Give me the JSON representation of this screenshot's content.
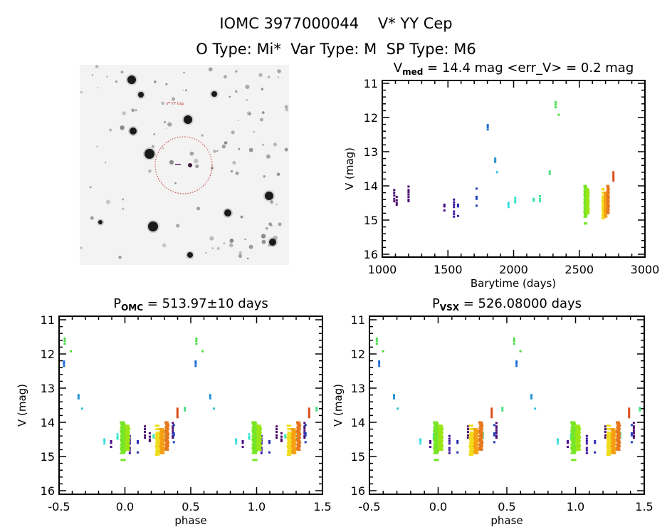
{
  "header": {
    "line1": "IOMC 3977000044    V* YY Cep",
    "line2": "O Type: Mi*  Var Type: M  SP Type: M6"
  },
  "image_panel": {
    "target_label": "V* YY Cep"
  },
  "chart_data": [
    {
      "type": "scatter",
      "id": "lightcurve",
      "title_main": "V",
      "title_sub": "med",
      "title_rest": " = 14.4 mag <err_V> = 0.2 mag",
      "xlabel": "Barytime (days)",
      "ylabel": "V (mag)",
      "xlim": [
        1000,
        3000
      ],
      "ylim": [
        16,
        11
      ],
      "xticks": [
        "1000",
        "1500",
        "2000",
        "2500",
        "3000"
      ],
      "yticks": [
        "11",
        "12",
        "13",
        "14",
        "15",
        "16"
      ],
      "groups": [
        {
          "t": 1091,
          "c": "#4b0a6e",
          "v": [
            14.12,
            14.2,
            14.28,
            14.38,
            14.45
          ]
        },
        {
          "t": 1110,
          "c": "#4b0a6e",
          "v": [
            14.32,
            14.42,
            14.5,
            14.55
          ]
        },
        {
          "t": 1200,
          "c": "#4b0a6e",
          "v": [
            14.02,
            14.12,
            14.18,
            14.25,
            14.32,
            14.4,
            14.45
          ]
        },
        {
          "t": 1473,
          "c": "#4b0a8e",
          "v": [
            14.55,
            14.6,
            14.72
          ]
        },
        {
          "t": 1546,
          "c": "#3c10a0",
          "v": [
            14.4,
            14.48,
            14.55,
            14.62,
            14.75,
            14.82,
            14.9
          ]
        },
        {
          "t": 1577,
          "c": "#2828b4",
          "v": [
            14.55,
            14.6,
            14.88
          ]
        },
        {
          "t": 1718,
          "c": "#2040c0",
          "v": [
            14.08,
            14.32,
            14.38,
            14.58
          ]
        },
        {
          "t": 1803,
          "c": "#1e6ed2",
          "v": [
            12.22,
            12.28,
            12.35
          ]
        },
        {
          "t": 1860,
          "c": "#2896d2",
          "v": [
            13.2,
            13.25,
            13.3
          ]
        },
        {
          "t": 1874,
          "c": "#32bede",
          "v": [
            13.6
          ]
        },
        {
          "t": 1961,
          "c": "#32dcdc",
          "v": [
            14.5,
            14.55,
            14.62
          ]
        },
        {
          "t": 2012,
          "c": "#32e6c8",
          "v": [
            14.35,
            14.42,
            14.48
          ]
        },
        {
          "t": 2153,
          "c": "#32e6b4",
          "v": [
            14.38,
            14.44
          ]
        },
        {
          "t": 2200,
          "c": "#32e696",
          "v": [
            14.3,
            14.38,
            14.45
          ]
        },
        {
          "t": 2275,
          "c": "#3cdc78",
          "v": [
            13.58,
            13.65
          ]
        },
        {
          "t": 2320,
          "c": "#46dc46",
          "v": [
            11.55,
            11.62,
            11.7
          ]
        },
        {
          "t": 2344,
          "c": "#50dc3c",
          "v": [
            11.92
          ]
        },
        {
          "t": 2547,
          "c": "#78e628",
          "spread": 12,
          "v": [
            14.0,
            14.05,
            14.1,
            14.15,
            14.2,
            14.25,
            14.3,
            14.35,
            14.4,
            14.45,
            14.5,
            14.55,
            14.6,
            14.65,
            14.7,
            14.75,
            14.8,
            14.85,
            14.9,
            15.1
          ]
        },
        {
          "t": 2565,
          "c": "#9be614",
          "spread": 10,
          "v": [
            14.1,
            14.15,
            14.2,
            14.25,
            14.3,
            14.35,
            14.4,
            14.45,
            14.5,
            14.55,
            14.6,
            14.65,
            14.7,
            14.75,
            14.8
          ]
        },
        {
          "t": 2683,
          "c": "#f0dc1e",
          "spread": 10,
          "v": [
            14.1,
            14.2,
            14.3,
            14.35,
            14.4,
            14.45,
            14.5,
            14.55,
            14.6,
            14.65,
            14.7,
            14.75,
            14.8,
            14.85,
            14.9,
            14.95
          ]
        },
        {
          "t": 2700,
          "c": "#f5a014",
          "spread": 10,
          "v": [
            14.2,
            14.25,
            14.3,
            14.35,
            14.4,
            14.45,
            14.5,
            14.55,
            14.6,
            14.65,
            14.7,
            14.75,
            14.8,
            14.85,
            14.9
          ]
        },
        {
          "t": 2719,
          "c": "#e6781e",
          "spread": 8,
          "v": [
            14.0,
            14.05,
            14.1,
            14.15,
            14.2,
            14.25,
            14.3,
            14.35,
            14.4,
            14.45,
            14.5,
            14.55,
            14.6,
            14.65,
            14.7,
            14.75,
            14.8
          ]
        },
        {
          "t": 2760,
          "c": "#dc501e",
          "v": [
            13.6,
            13.65,
            13.7,
            13.75,
            13.8,
            13.85
          ]
        }
      ]
    },
    {
      "type": "scatter",
      "id": "phase_omc",
      "title_main": "P",
      "title_sub": "OMC",
      "title_rest": " = 513.97±10 days",
      "period": 513.97,
      "phase_zero_time": 2555,
      "xlabel": "phase",
      "ylabel": "V (mag)",
      "xlim": [
        -0.5,
        1.5
      ],
      "ylim": [
        16,
        11
      ],
      "xticks": [
        "-0.5",
        "0.0",
        "0.5",
        "1.0",
        "1.5"
      ],
      "yticks": [
        "11",
        "12",
        "13",
        "14",
        "15",
        "16"
      ]
    },
    {
      "type": "scatter",
      "id": "phase_vsx",
      "title_main": "P",
      "title_sub": "VSX",
      "title_rest": " = 526.08000 days",
      "period": 526.08,
      "phase_zero_time": 2555,
      "xlabel": "phase",
      "ylabel": "V (mag)",
      "xlim": [
        -0.5,
        1.5
      ],
      "ylim": [
        16,
        11
      ],
      "xticks": [
        "-0.5",
        "0.0",
        "0.5",
        "1.0",
        "1.5"
      ],
      "yticks": [
        "11",
        "12",
        "13",
        "14",
        "15",
        "16"
      ]
    }
  ]
}
